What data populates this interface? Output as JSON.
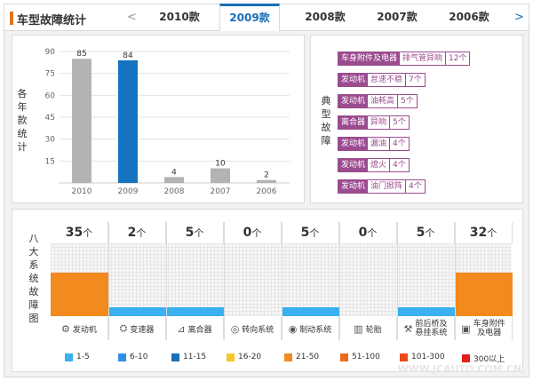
{
  "header": {
    "title": "车型故障统计",
    "prev_arrow": "<",
    "next_arrow": ">",
    "tabs": [
      {
        "label": "2010款",
        "active": false
      },
      {
        "label": "2009款",
        "active": true
      },
      {
        "label": "2008款",
        "active": false
      },
      {
        "label": "2007款",
        "active": false
      },
      {
        "label": "2006款",
        "active": false
      }
    ]
  },
  "year_chart": {
    "side_label": [
      "各",
      "年",
      "款",
      "统",
      "计"
    ],
    "chart_data": {
      "type": "bar",
      "categories": [
        "2010",
        "2009",
        "2008",
        "2007",
        "2006"
      ],
      "values": [
        85,
        84,
        4,
        10,
        2
      ],
      "highlight": "2009",
      "ylim": [
        0,
        90
      ],
      "yticks": [
        15,
        30,
        45,
        60,
        75,
        90
      ],
      "colors": {
        "default": "#b3b3b3",
        "highlight": "#1673c0"
      }
    }
  },
  "typical_faults": {
    "side_label": [
      "典",
      "型",
      "故",
      "障"
    ],
    "items": [
      {
        "category": "车身附件及电器",
        "desc": "排气管异响",
        "count": "12个"
      },
      {
        "category": "发动机",
        "desc": "怠速不稳",
        "count": "7个"
      },
      {
        "category": "发动机",
        "desc": "油耗高",
        "count": "5个"
      },
      {
        "category": "离合器",
        "desc": "异响",
        "count": "5个"
      },
      {
        "category": "发动机",
        "desc": "漏油",
        "count": "4个"
      },
      {
        "category": "发动机",
        "desc": "熄火",
        "count": "4个"
      },
      {
        "category": "发动机",
        "desc": "油门掀阵",
        "count": "4个"
      }
    ]
  },
  "systems": {
    "side_label": [
      "八",
      "大",
      "系",
      "统",
      "故",
      "障",
      "图"
    ],
    "unit": "个",
    "items": [
      {
        "name": "发动机",
        "icon": "engine-icon",
        "glyph": "⚙",
        "count": "35",
        "level": 0.6,
        "color": "#f28a1e"
      },
      {
        "name": "变速器",
        "icon": "gear-shift-icon",
        "glyph": "⛭",
        "count": "2",
        "level": 0.12,
        "color": "#39b0ef"
      },
      {
        "name": "离合器",
        "icon": "clutch-pedal-icon",
        "glyph": "⊿",
        "count": "5",
        "level": 0.12,
        "color": "#39b0ef"
      },
      {
        "name": "转向系统",
        "icon": "steering-wheel-icon",
        "glyph": "◎",
        "count": "0",
        "level": 0,
        "color": "#39b0ef"
      },
      {
        "name": "制动系统",
        "icon": "brake-disc-icon",
        "glyph": "◉",
        "count": "5",
        "level": 0.12,
        "color": "#39b0ef"
      },
      {
        "name": "轮胎",
        "icon": "tire-icon",
        "glyph": "▥",
        "count": "0",
        "level": 0,
        "color": "#39b0ef"
      },
      {
        "name": "前后桥及悬挂系统",
        "name_lines": [
          "前后桥及",
          "悬挂系统"
        ],
        "icon": "suspension-icon",
        "glyph": "⚒",
        "count": "5",
        "level": 0.12,
        "color": "#39b0ef"
      },
      {
        "name": "车身附件及电器",
        "name_lines": [
          "车身附件",
          "及电器"
        ],
        "icon": "battery-icon",
        "glyph": "▣",
        "count": "32",
        "level": 0.6,
        "color": "#f28a1e"
      }
    ]
  },
  "legend": [
    {
      "label": "1-5",
      "color": "#39b0ef"
    },
    {
      "label": "6-10",
      "color": "#2f8fe8"
    },
    {
      "label": "11-15",
      "color": "#1a6fb8"
    },
    {
      "label": "16-20",
      "color": "#f6c72a"
    },
    {
      "label": "21-50",
      "color": "#f28a1e"
    },
    {
      "label": "51-100",
      "color": "#ee6a19"
    },
    {
      "label": "101-300",
      "color": "#ea4a19"
    },
    {
      "label": "300以上",
      "color": "#e21f1f"
    }
  ],
  "watermark": "WWW.JCAUTO.COM.CN"
}
